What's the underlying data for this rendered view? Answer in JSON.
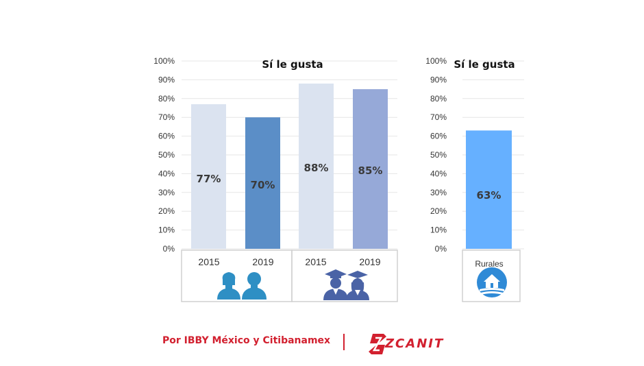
{
  "chart_data": [
    {
      "type": "bar",
      "title": "Sí le gusta",
      "categories": [
        "2015",
        "2019",
        "2015",
        "2019"
      ],
      "values": [
        77,
        70,
        88,
        85
      ],
      "data_labels": [
        "77%",
        "70%",
        "88%",
        "85%"
      ],
      "bar_colors": [
        "#dbe3f0",
        "#5b8ec7",
        "#dbe3f0",
        "#96a9d8"
      ],
      "groups": [
        {
          "icon": "parents-icon",
          "categories": [
            "2015",
            "2019"
          ]
        },
        {
          "icon": "graduates-icon",
          "categories": [
            "2015",
            "2019"
          ]
        }
      ],
      "ylim": [
        0,
        100
      ],
      "yticks": [
        "0%",
        "10%",
        "20%",
        "30%",
        "40%",
        "50%",
        "60%",
        "70%",
        "80%",
        "90%",
        "100%"
      ],
      "grid": true,
      "legend": "none"
    },
    {
      "type": "bar",
      "title": "Sí le gusta",
      "categories": [
        "Rurales"
      ],
      "values": [
        63
      ],
      "data_labels": [
        "63%"
      ],
      "bar_colors": [
        "#66b0ff"
      ],
      "groups": [
        {
          "icon": "rural-house-icon",
          "categories": [
            "Rurales"
          ]
        }
      ],
      "ylim": [
        0,
        100
      ],
      "yticks": [
        "0%",
        "10%",
        "20%",
        "30%",
        "40%",
        "50%",
        "60%",
        "70%",
        "80%",
        "90%",
        "100%"
      ],
      "grid": true,
      "legend": "none"
    }
  ],
  "footer": {
    "credit": "Por IBBY México y Citibanamex",
    "logo_text": "ZCANIT",
    "color": "#d2202f"
  },
  "colors": {
    "grid": "#e6e6e6",
    "box_border": "#d0d0d0",
    "icon_teal": "#2e8fc4",
    "icon_navy": "#4a63a6",
    "icon_rural": "#2f8ad6"
  }
}
